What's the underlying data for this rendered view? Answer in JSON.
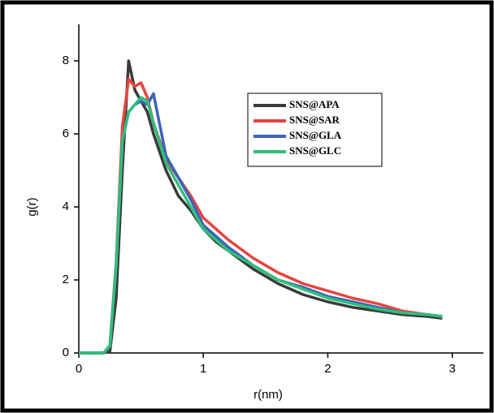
{
  "chart_data": {
    "type": "line",
    "x_label": "r(nm)",
    "y_label": "g(r)",
    "x": [
      0,
      0.1,
      0.2,
      0.25,
      0.3,
      0.35,
      0.4,
      0.45,
      0.5,
      0.55,
      0.6,
      0.7,
      0.8,
      0.9,
      1.0,
      1.1,
      1.2,
      1.4,
      1.6,
      1.8,
      2.0,
      2.2,
      2.4,
      2.6,
      2.8,
      2.92
    ],
    "series": [
      {
        "name": "SNS@APA",
        "color": "#3a3a3a",
        "values": [
          0,
          0,
          0,
          0.05,
          1.5,
          5.0,
          8.0,
          7.2,
          6.9,
          6.6,
          6.0,
          5.0,
          4.3,
          3.9,
          3.4,
          3.05,
          2.8,
          2.3,
          1.9,
          1.6,
          1.4,
          1.25,
          1.15,
          1.05,
          1.0,
          0.95
        ]
      },
      {
        "name": "SNS@SAR",
        "color": "#e8443e",
        "values": [
          0,
          0,
          0,
          0.2,
          2.5,
          6.2,
          7.5,
          7.3,
          7.4,
          7.0,
          6.3,
          5.3,
          4.8,
          4.3,
          3.7,
          3.4,
          3.1,
          2.6,
          2.2,
          1.9,
          1.7,
          1.5,
          1.35,
          1.15,
          1.05,
          1.0
        ]
      },
      {
        "name": "SNS@GLA",
        "color": "#3d63b8",
        "values": [
          0,
          0,
          0,
          0.2,
          2.4,
          5.8,
          6.6,
          6.8,
          6.9,
          6.8,
          7.1,
          5.4,
          4.8,
          4.2,
          3.5,
          3.2,
          2.9,
          2.4,
          2.0,
          1.8,
          1.55,
          1.4,
          1.25,
          1.1,
          1.05,
          1.0
        ]
      },
      {
        "name": "SNS@GLC",
        "color": "#2fbf7c",
        "values": [
          0,
          0,
          0,
          0.2,
          2.4,
          5.8,
          6.6,
          6.8,
          7.0,
          6.9,
          6.3,
          5.2,
          4.6,
          4.0,
          3.4,
          3.1,
          2.8,
          2.4,
          2.0,
          1.75,
          1.5,
          1.35,
          1.2,
          1.1,
          1.05,
          1.0
        ]
      }
    ],
    "xlim": [
      0,
      3.25
    ],
    "ylim": [
      0,
      9
    ],
    "xticks": [
      0,
      1,
      2,
      3
    ],
    "yticks": [
      0,
      2,
      4,
      6,
      8
    ]
  }
}
